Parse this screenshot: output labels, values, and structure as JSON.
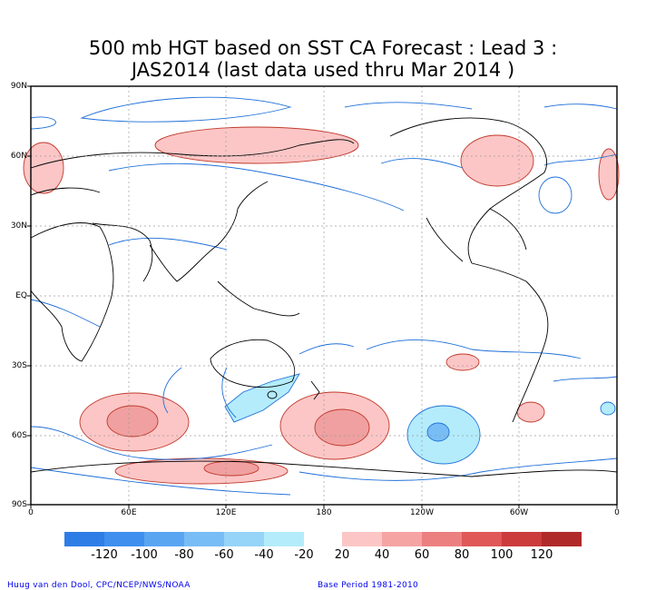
{
  "title": {
    "line1": "500 mb HGT based on SST CA Forecast : Lead 3 :",
    "line2": "JAS2014 (last data used thru Mar 2014 )"
  },
  "axes": {
    "lat_ticks": [
      "90N",
      "60N",
      "30N",
      "EQ",
      "30S",
      "60S",
      "90S"
    ],
    "lon_ticks": [
      "0",
      "60E",
      "120E",
      "180",
      "120W",
      "60W",
      "0"
    ]
  },
  "colorbar": {
    "negative_labels": [
      "-120",
      "-100",
      "-80",
      "-60",
      "-40",
      "-20"
    ],
    "positive_labels": [
      "20",
      "40",
      "60",
      "80",
      "100",
      "120"
    ],
    "negative_colors": [
      "#2e7de6",
      "#3e8fee",
      "#5aa5f2",
      "#78bdf5",
      "#96d4f8",
      "#b4ecfb"
    ],
    "positive_colors": [
      "#fcc6c6",
      "#f6a3a3",
      "#ec8080",
      "#e05858",
      "#cc3c3c",
      "#b02a2a"
    ]
  },
  "credits": {
    "left": "Huug van den Dool, CPC/NCEP/NWS/NOAA",
    "right": "Base Period 1981-2010"
  }
}
